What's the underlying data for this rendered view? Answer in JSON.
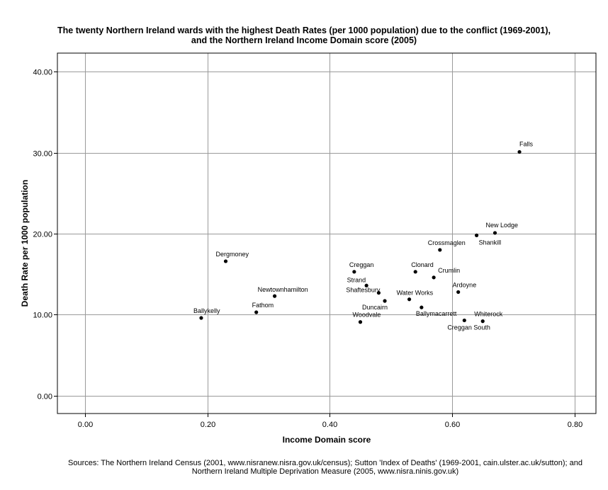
{
  "chart_data": {
    "type": "scatter",
    "title_line1": "The twenty Northern Ireland wards with the highest Death Rates (per 1000 population) due to the conflict (1969-2001),",
    "title_line2": "and the Northern Ireland Income Domain score (2005)",
    "xlabel": "Income Domain score",
    "ylabel": "Death Rate per 1000 population",
    "xlim": [
      -0.045,
      0.835
    ],
    "ylim": [
      -2.2,
      42.3
    ],
    "x_ticks": [
      0.0,
      0.2,
      0.4,
      0.6,
      0.8
    ],
    "x_tick_labels": [
      "0.00",
      "0.20",
      "0.40",
      "0.60",
      "0.80"
    ],
    "y_ticks": [
      0,
      10,
      20,
      30,
      40
    ],
    "y_tick_labels": [
      "0.00",
      "10.00",
      "20.00",
      "30.00",
      "40.00"
    ],
    "grid": true,
    "points": [
      {
        "label": "Falls",
        "x": 0.71,
        "y": 30.1
      },
      {
        "label": "New Lodge",
        "x": 0.67,
        "y": 20.1
      },
      {
        "label": "Shankill",
        "x": 0.64,
        "y": 19.8
      },
      {
        "label": "Crossmaglen",
        "x": 0.58,
        "y": 18.0
      },
      {
        "label": "Dergmoney",
        "x": 0.23,
        "y": 16.6
      },
      {
        "label": "Creggan",
        "x": 0.44,
        "y": 15.3
      },
      {
        "label": "Clonard",
        "x": 0.54,
        "y": 15.3
      },
      {
        "label": "Crumlin",
        "x": 0.57,
        "y": 14.6
      },
      {
        "label": "Strand",
        "x": 0.46,
        "y": 13.6
      },
      {
        "label": "Ardoyne",
        "x": 0.61,
        "y": 12.8
      },
      {
        "label": "Shaftesbury",
        "x": 0.48,
        "y": 12.7
      },
      {
        "label": "Water Works",
        "x": 0.53,
        "y": 11.9
      },
      {
        "label": "Newtownhamilton",
        "x": 0.31,
        "y": 12.3
      },
      {
        "label": "Duncairn",
        "x": 0.49,
        "y": 11.7
      },
      {
        "label": "Ballymacarrett",
        "x": 0.55,
        "y": 10.9
      },
      {
        "label": "Fathom",
        "x": 0.28,
        "y": 10.3
      },
      {
        "label": "Ballykelly",
        "x": 0.19,
        "y": 9.6
      },
      {
        "label": "Woodvale",
        "x": 0.45,
        "y": 9.1
      },
      {
        "label": "Creggan South",
        "x": 0.62,
        "y": 9.3
      },
      {
        "label": "Whiterock",
        "x": 0.65,
        "y": 9.2
      }
    ]
  },
  "sources_line1": "Sources: The Northern Ireland Census (2001, www.nisranew.nisra.gov.uk/census); Sutton 'Index of Deaths' (1969-2001, cain.ulster.ac.uk/sutton); and",
  "sources_line2": "Northern Ireland Multiple Deprivation Measure (2005, www.nisra.ninis.gov.uk)"
}
